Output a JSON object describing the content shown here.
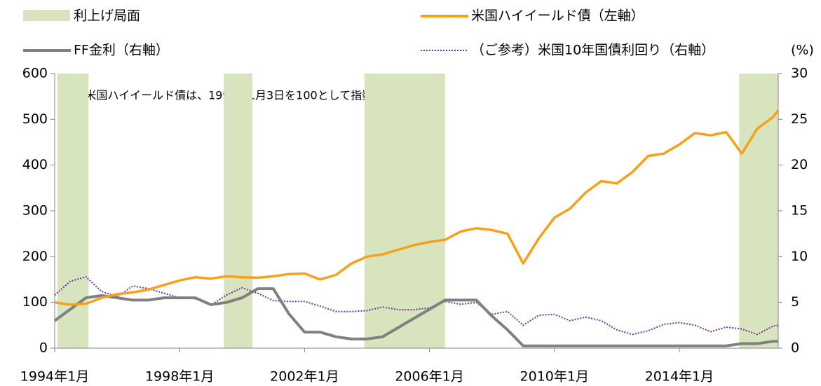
{
  "chart_data": {
    "type": "line",
    "annotation": "※米国ハイイールド債は、1994年1月3日を100として指数化",
    "y2_unit": "(%)",
    "shaded_periods": {
      "name": "利上げ局面",
      "color": "#d7e4bd",
      "ranges": [
        [
          "1994-02",
          "1995-02"
        ],
        [
          "1999-06",
          "2000-05"
        ],
        [
          "2003-12",
          "2006-07"
        ],
        [
          "2015-12",
          "2017-03"
        ]
      ]
    },
    "x": [
      "1994-01",
      "1994-07",
      "1995-01",
      "1995-07",
      "1996-01",
      "1996-07",
      "1997-01",
      "1997-07",
      "1998-01",
      "1998-07",
      "1999-01",
      "1999-07",
      "2000-01",
      "2000-07",
      "2001-01",
      "2001-07",
      "2002-01",
      "2002-07",
      "2003-01",
      "2003-07",
      "2004-01",
      "2004-07",
      "2005-01",
      "2005-07",
      "2006-01",
      "2006-07",
      "2007-01",
      "2007-07",
      "2008-01",
      "2008-07",
      "2009-01",
      "2009-07",
      "2010-01",
      "2010-07",
      "2011-01",
      "2011-07",
      "2012-01",
      "2012-07",
      "2013-01",
      "2013-07",
      "2014-01",
      "2014-07",
      "2015-01",
      "2015-07",
      "2016-01",
      "2016-07",
      "2017-01",
      "2017-03"
    ],
    "series": [
      {
        "name": "（ご参考）米国10年国債利回り（右軸）",
        "color": "#7030a0",
        "axis": "y2",
        "dashed": true,
        "values": [
          5.8,
          7.3,
          7.8,
          6.2,
          5.6,
          6.8,
          6.5,
          6.0,
          5.5,
          5.4,
          4.7,
          5.8,
          6.6,
          6.0,
          5.2,
          5.1,
          5.1,
          4.6,
          4.0,
          4.0,
          4.1,
          4.5,
          4.2,
          4.2,
          4.4,
          5.1,
          4.8,
          5.0,
          3.7,
          4.0,
          2.5,
          3.6,
          3.7,
          3.0,
          3.4,
          3.0,
          2.0,
          1.5,
          1.9,
          2.6,
          2.8,
          2.5,
          1.8,
          2.3,
          2.1,
          1.5,
          2.4,
          2.5
        ]
      },
      {
        "name": "FF金利（右軸）",
        "color": "#808080",
        "axis": "y2",
        "values": [
          3,
          4.25,
          5.5,
          5.75,
          5.5,
          5.25,
          5.25,
          5.5,
          5.5,
          5.5,
          4.75,
          5,
          5.5,
          6.5,
          6.5,
          3.75,
          1.75,
          1.75,
          1.25,
          1,
          1,
          1.25,
          2.25,
          3.25,
          4.25,
          5.25,
          5.25,
          5.25,
          3.5,
          2,
          0.25,
          0.25,
          0.25,
          0.25,
          0.25,
          0.25,
          0.25,
          0.25,
          0.25,
          0.25,
          0.25,
          0.25,
          0.25,
          0.25,
          0.5,
          0.5,
          0.75,
          0.75
        ]
      },
      {
        "name": "米国ハイイールド債（左軸）",
        "color": "#f7a11a",
        "values": [
          100,
          95,
          97,
          110,
          118,
          122,
          128,
          138,
          148,
          155,
          152,
          157,
          155,
          154,
          157,
          162,
          163,
          150,
          160,
          185,
          200,
          205,
          215,
          225,
          232,
          237,
          255,
          262,
          258,
          250,
          185,
          240,
          285,
          305,
          340,
          365,
          360,
          385,
          420,
          425,
          445,
          470,
          465,
          472,
          425,
          480,
          505,
          520
        ]
      }
    ],
    "xlim": [
      "1994-01",
      "2017-03"
    ],
    "xticks": [
      {
        "value": "1994-01",
        "label": "1994年1月"
      },
      {
        "value": "1998-01",
        "label": "1998年1月"
      },
      {
        "value": "2002-01",
        "label": "2002年1月"
      },
      {
        "value": "2006-01",
        "label": "2006年1月"
      },
      {
        "value": "2010-01",
        "label": "2010年1月"
      },
      {
        "value": "2014-01",
        "label": "2014年1月"
      }
    ],
    "ylim": [
      0,
      600
    ],
    "yticks": [
      0,
      100,
      200,
      300,
      400,
      500,
      600
    ],
    "y2lim": [
      0,
      30
    ],
    "y2ticks": [
      0,
      5,
      10,
      15,
      20,
      25,
      30
    ]
  }
}
